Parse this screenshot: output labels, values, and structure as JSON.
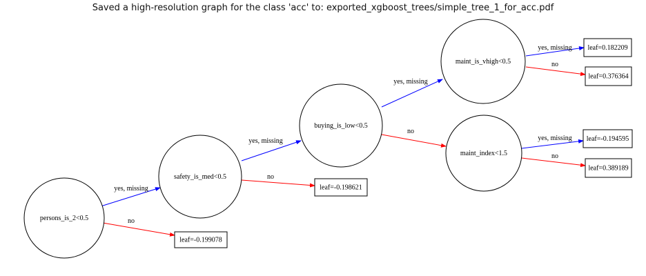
{
  "title": "Saved a high-resolution graph for the class 'acc' to: exported_xgboost_trees/simple_tree_1_for_acc.pdf",
  "colors": {
    "yes": "#0000ff",
    "no": "#ff0000",
    "stroke": "#000000"
  },
  "tree": {
    "nodes": [
      {
        "id": "persons",
        "label": "persons_is_2<0.5"
      },
      {
        "id": "safety",
        "label": "safety_is_med<0.5"
      },
      {
        "id": "buying",
        "label": "buying_is_low<0.5"
      },
      {
        "id": "maint_vhigh",
        "label": "maint_is_vhigh<0.5"
      },
      {
        "id": "maint_index",
        "label": "maint_index<1.5"
      }
    ],
    "leaves": [
      {
        "id": "leaf1",
        "label": "leaf=-0.199078"
      },
      {
        "id": "leaf2",
        "label": "leaf=-0.198621"
      },
      {
        "id": "leaf3",
        "label": "leaf=0.182209"
      },
      {
        "id": "leaf4",
        "label": "leaf=0.376364"
      },
      {
        "id": "leaf5",
        "label": "leaf=-0.194595"
      },
      {
        "id": "leaf6",
        "label": "leaf=0.389189"
      }
    ],
    "edges": [
      {
        "id": "e1",
        "from": "persons",
        "to": "safety",
        "label": "yes, missing",
        "kind": "yes"
      },
      {
        "id": "e2",
        "from": "persons",
        "to": "leaf1",
        "label": "no",
        "kind": "no"
      },
      {
        "id": "e3",
        "from": "safety",
        "to": "buying",
        "label": "yes, missing",
        "kind": "yes"
      },
      {
        "id": "e4",
        "from": "safety",
        "to": "leaf2",
        "label": "no",
        "kind": "no"
      },
      {
        "id": "e5",
        "from": "buying",
        "to": "maint_vhigh",
        "label": "yes, missing",
        "kind": "yes"
      },
      {
        "id": "e6",
        "from": "buying",
        "to": "maint_index",
        "label": "no",
        "kind": "no"
      },
      {
        "id": "e7",
        "from": "maint_vhigh",
        "to": "leaf3",
        "label": "yes, missing",
        "kind": "yes"
      },
      {
        "id": "e8",
        "from": "maint_vhigh",
        "to": "leaf4",
        "label": "no",
        "kind": "no"
      },
      {
        "id": "e9",
        "from": "maint_index",
        "to": "leaf5",
        "label": "yes, missing",
        "kind": "yes"
      },
      {
        "id": "e10",
        "from": "maint_index",
        "to": "leaf6",
        "label": "no",
        "kind": "no"
      }
    ]
  }
}
